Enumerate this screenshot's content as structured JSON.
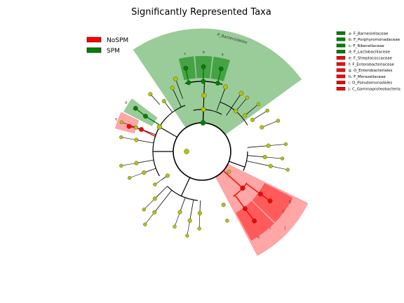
{
  "chart_data": {
    "type": "cladogram",
    "title": "Significantly Represented Taxa",
    "groups": [
      {
        "name": "NoSPM",
        "color": "#ff0000"
      },
      {
        "name": "SPM",
        "color": "#008000"
      }
    ],
    "taxa": [
      {
        "letter": "a",
        "label": "a: F_Barnesiellaceae",
        "group": "SPM"
      },
      {
        "letter": "b",
        "label": "b: F_Porphyromonadaceae",
        "group": "SPM"
      },
      {
        "letter": "c",
        "label": "c: F_Rikenellaceae",
        "group": "SPM"
      },
      {
        "letter": "d",
        "label": "d: F_Lactobacillaceae",
        "group": "SPM"
      },
      {
        "letter": "e",
        "label": "e: F_Streptococcaceae",
        "group": "NoSPM"
      },
      {
        "letter": "f",
        "label": "f: F_Enterobacteriaceae",
        "group": "NoSPM"
      },
      {
        "letter": "g",
        "label": "g: O_Enterobacteriales",
        "group": "NoSPM"
      },
      {
        "letter": "h",
        "label": "h: F_Moraxellaceae",
        "group": "NoSPM"
      },
      {
        "letter": "i",
        "label": "i: O_Pseudomonadales",
        "group": "NoSPM"
      },
      {
        "letter": "j",
        "label": "j: C_Gammaproteobacteria",
        "group": "NoSPM"
      }
    ],
    "phylum_label": "P_Bacteroidetes",
    "legend_location": "top-left and top-right"
  },
  "colors": {
    "spm": "#008000",
    "nospm": "#ff0000",
    "spm_shade": "#7cc47c",
    "nospm_shade": "#ff8080",
    "neutral_node": "#b5c400"
  }
}
